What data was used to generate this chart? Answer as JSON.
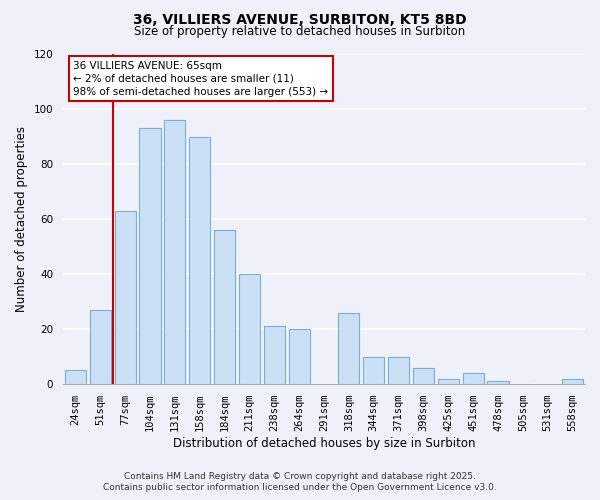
{
  "title_line1": "36, VILLIERS AVENUE, SURBITON, KT5 8BD",
  "title_line2": "Size of property relative to detached houses in Surbiton",
  "xlabel": "Distribution of detached houses by size in Surbiton",
  "ylabel": "Number of detached properties",
  "categories": [
    "24sqm",
    "51sqm",
    "77sqm",
    "104sqm",
    "131sqm",
    "158sqm",
    "184sqm",
    "211sqm",
    "238sqm",
    "264sqm",
    "291sqm",
    "318sqm",
    "344sqm",
    "371sqm",
    "398sqm",
    "425sqm",
    "451sqm",
    "478sqm",
    "505sqm",
    "531sqm",
    "558sqm"
  ],
  "values": [
    5,
    27,
    63,
    93,
    96,
    90,
    56,
    40,
    21,
    20,
    0,
    26,
    10,
    10,
    6,
    2,
    4,
    1,
    0,
    0,
    2
  ],
  "bar_color": "#cce0f5",
  "bar_edge_color": "#7aafd4",
  "vline_color": "#cc0000",
  "vline_x": 1.5,
  "ylim": [
    0,
    120
  ],
  "yticks": [
    0,
    20,
    40,
    60,
    80,
    100,
    120
  ],
  "annotation_line1": "36 VILLIERS AVENUE: 65sqm",
  "annotation_line2": "← 2% of detached houses are smaller (11)",
  "annotation_line3": "98% of semi-detached houses are larger (553) →",
  "footer_line1": "Contains HM Land Registry data © Crown copyright and database right 2025.",
  "footer_line2": "Contains public sector information licensed under the Open Government Licence v3.0.",
  "background_color": "#eef1fa",
  "title_fontsize": 10,
  "subtitle_fontsize": 8.5,
  "xlabel_fontsize": 8.5,
  "ylabel_fontsize": 8.5,
  "tick_fontsize": 7.5,
  "annotation_fontsize": 7.5,
  "footer_fontsize": 6.5
}
